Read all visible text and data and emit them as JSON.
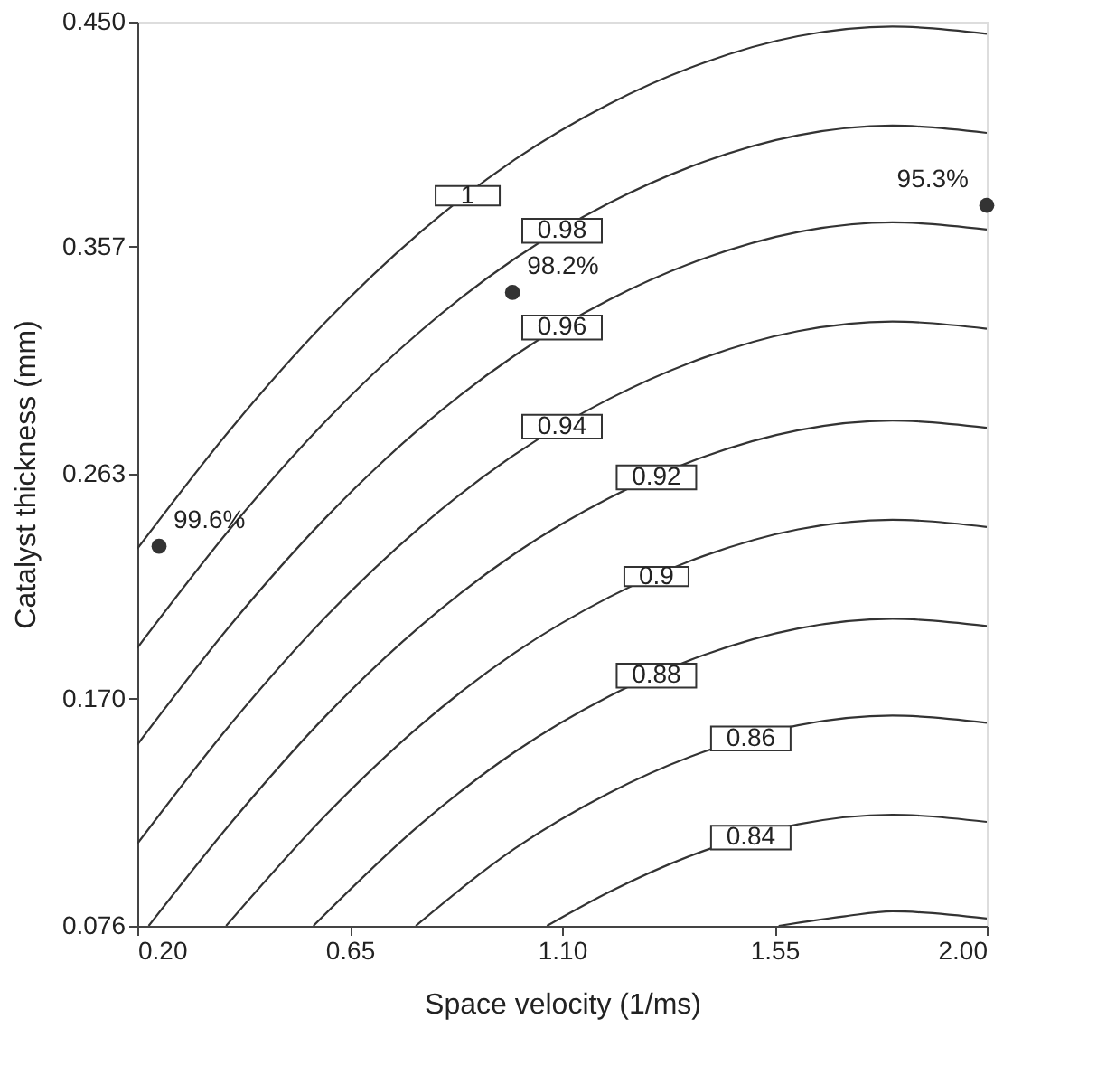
{
  "chart_data": {
    "type": "line",
    "xlabel": "Space velocity (1/ms)",
    "ylabel": "Catalyst thickness (mm)",
    "xlim": [
      0.2,
      2.0
    ],
    "xticks": [
      {
        "value": 0.2,
        "label": "0.20"
      },
      {
        "value": 0.65,
        "label": "0.65"
      },
      {
        "value": 1.1,
        "label": "1.10"
      },
      {
        "value": 1.55,
        "label": "1.55"
      },
      {
        "value": 2.0,
        "label": "2.00"
      }
    ],
    "ylim": [
      0.076,
      0.45
    ],
    "yticks": [
      {
        "value": 0.076,
        "label": "0.076"
      },
      {
        "value": 0.17,
        "label": "0.170"
      },
      {
        "value": 0.263,
        "label": "0.263"
      },
      {
        "value": 0.357,
        "label": "0.357"
      },
      {
        "value": 0.45,
        "label": "0.450"
      }
    ],
    "grid": false,
    "line_style": "solid",
    "annotations": [
      {
        "text": "99.6%",
        "x": 0.246,
        "y": 0.233
      },
      {
        "text": "98.2%",
        "x": 0.995,
        "y": 0.338
      },
      {
        "text": "95.3%",
        "x": 2.0,
        "y": 0.374
      }
    ],
    "series": [
      {
        "name": "1",
        "color": "#333333",
        "x": [
          0.2,
          0.4,
          0.6,
          0.8,
          1.0,
          1.2,
          1.4,
          1.6,
          1.8,
          2.0
        ],
        "values": [
          0.232,
          0.282,
          0.326,
          0.363,
          0.393,
          0.416,
          0.433,
          0.444,
          0.448,
          0.445
        ]
      },
      {
        "name": "0.98",
        "color": "#333333",
        "x": [
          0.2,
          0.4,
          0.6,
          0.8,
          1.0,
          1.2,
          1.4,
          1.6,
          1.8,
          2.0
        ],
        "values": [
          0.191,
          0.241,
          0.285,
          0.322,
          0.352,
          0.375,
          0.392,
          0.403,
          0.407,
          0.404
        ]
      },
      {
        "name": "0.96",
        "color": "#333333",
        "x": [
          0.2,
          0.4,
          0.6,
          0.8,
          1.0,
          1.2,
          1.4,
          1.6,
          1.8,
          2.0
        ],
        "values": [
          0.151,
          0.201,
          0.245,
          0.282,
          0.312,
          0.335,
          0.352,
          0.363,
          0.367,
          0.364
        ]
      },
      {
        "name": "0.94",
        "color": "#333333",
        "x": [
          0.2,
          0.4,
          0.6,
          0.8,
          1.0,
          1.2,
          1.4,
          1.6,
          1.8,
          2.0
        ],
        "values": [
          0.11,
          0.16,
          0.204,
          0.241,
          0.271,
          0.294,
          0.311,
          0.322,
          0.326,
          0.323
        ]
      },
      {
        "name": "0.92",
        "color": "#333333",
        "x": [
          0.224,
          0.4,
          0.6,
          0.8,
          1.0,
          1.2,
          1.4,
          1.6,
          1.8,
          2.0
        ],
        "values": [
          0.076,
          0.119,
          0.163,
          0.2,
          0.23,
          0.253,
          0.27,
          0.281,
          0.285,
          0.282
        ]
      },
      {
        "name": "0.9",
        "color": "#333333",
        "x": [
          0.388,
          0.6,
          0.8,
          1.0,
          1.2,
          1.4,
          1.6,
          1.8,
          2.0
        ],
        "values": [
          0.076,
          0.122,
          0.159,
          0.189,
          0.212,
          0.229,
          0.24,
          0.244,
          0.241
        ]
      },
      {
        "name": "0.88",
        "color": "#333333",
        "x": [
          0.573,
          0.8,
          1.0,
          1.2,
          1.4,
          1.6,
          1.8,
          2.0
        ],
        "values": [
          0.076,
          0.118,
          0.148,
          0.171,
          0.188,
          0.199,
          0.203,
          0.2
        ]
      },
      {
        "name": "0.86",
        "color": "#333333",
        "x": [
          0.79,
          1.0,
          1.2,
          1.4,
          1.6,
          1.8,
          2.0
        ],
        "values": [
          0.076,
          0.108,
          0.131,
          0.148,
          0.159,
          0.163,
          0.16
        ]
      },
      {
        "name": "0.84",
        "color": "#333333",
        "x": [
          1.068,
          1.2,
          1.4,
          1.6,
          1.8,
          2.0
        ],
        "values": [
          0.076,
          0.09,
          0.107,
          0.118,
          0.122,
          0.119
        ]
      },
      {
        "color": "#333333",
        "x": [
          1.559,
          1.7,
          1.8,
          2.0
        ],
        "values": [
          0.076,
          0.08,
          0.082,
          0.079
        ]
      },
      {
        "type": "scatter",
        "marker": "circle",
        "color": "#333333",
        "x": [
          0.246,
          0.995,
          2.0
        ],
        "values": [
          0.233,
          0.338,
          0.374
        ]
      }
    ]
  }
}
